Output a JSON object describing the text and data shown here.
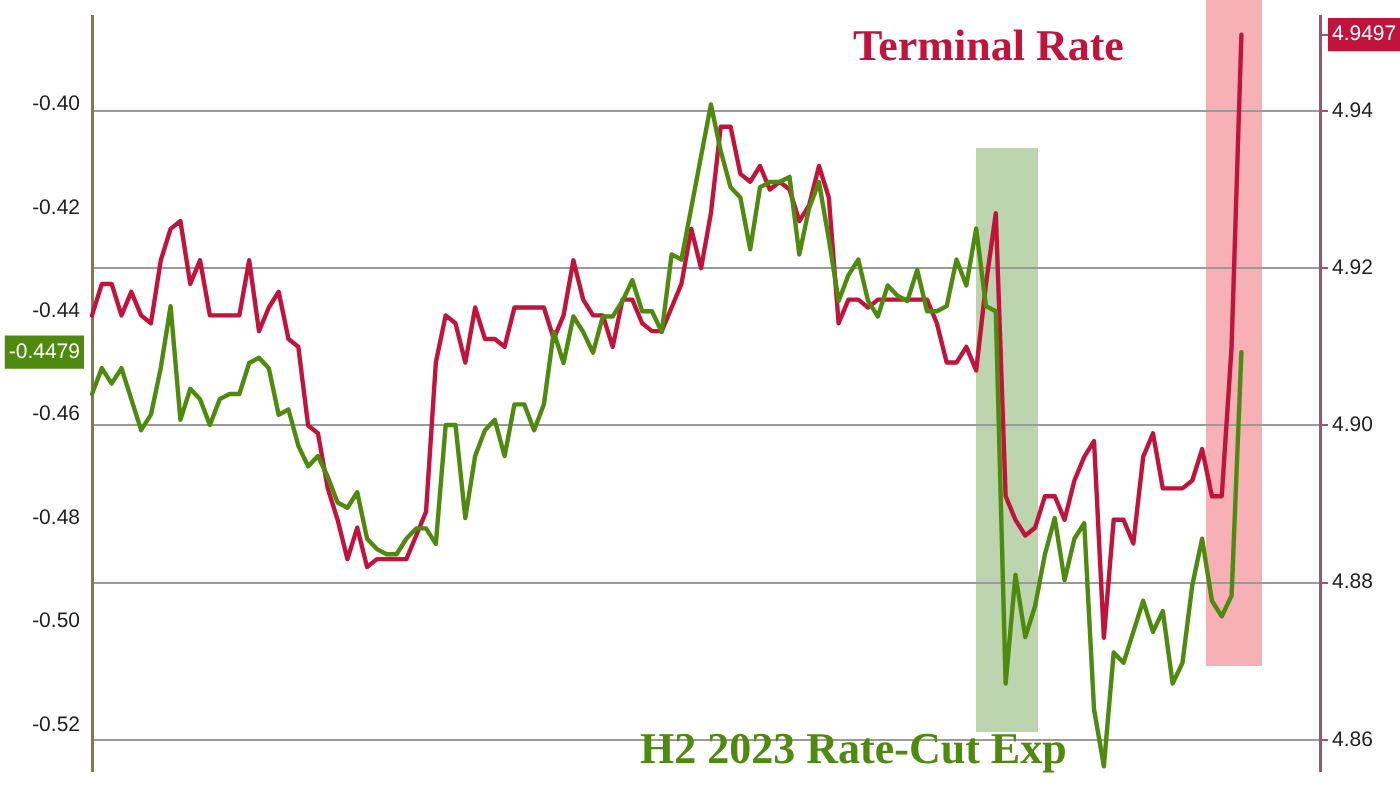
{
  "chart_data": {
    "type": "line",
    "categories": [
      null,
      null,
      null,
      null,
      null,
      null,
      null,
      null,
      null,
      null,
      null,
      null,
      null,
      null,
      null,
      null,
      null,
      null,
      null,
      null,
      null,
      null,
      null,
      null,
      null,
      null,
      null,
      null,
      null,
      null,
      null,
      null,
      null,
      null,
      null,
      null,
      null,
      null,
      null,
      null,
      null,
      null,
      null,
      null,
      null,
      null,
      null,
      null,
      null,
      null,
      null,
      null,
      null,
      null,
      null,
      null,
      null,
      null,
      null,
      null,
      null,
      null,
      null,
      null,
      null,
      null,
      null,
      null,
      null,
      null,
      null,
      null,
      null,
      null,
      null,
      null,
      null,
      null,
      null,
      null,
      null,
      null,
      null,
      null,
      null,
      null,
      null,
      null,
      null,
      null,
      null,
      null,
      null,
      null,
      null,
      null,
      null,
      null,
      null,
      null,
      null,
      null,
      null,
      null,
      null,
      null,
      null,
      null,
      null,
      null,
      null,
      null,
      null,
      null,
      null,
      null,
      null,
      null,
      null,
      null,
      null,
      null,
      null,
      null,
      null,
      null
    ],
    "ylim": [
      -0.529,
      -0.383
    ],
    "yticks": [
      {
        "value": -0.52,
        "label": "-0.52"
      },
      {
        "value": -0.5,
        "label": "-0.50"
      },
      {
        "value": -0.48,
        "label": "-0.48"
      },
      {
        "value": -0.46,
        "label": "-0.46"
      },
      {
        "value": -0.44,
        "label": "-0.44"
      },
      {
        "value": -0.42,
        "label": "-0.42"
      },
      {
        "value": -0.4,
        "label": "-0.40"
      },
      {
        "value": -0.4479,
        "label": "-0.4479"
      }
    ],
    "y2lim": [
      4.856,
      4.952
    ],
    "y2ticks": [
      {
        "value": 4.86,
        "label": "4.86"
      },
      {
        "value": 4.88,
        "label": "4.88"
      },
      {
        "value": 4.9,
        "label": "4.90"
      },
      {
        "value": 4.92,
        "label": "4.92"
      },
      {
        "value": 4.94,
        "label": "4.94"
      },
      {
        "value": 4.9497,
        "label": "4.9497"
      }
    ],
    "tick_labels": "y",
    "grid": "y",
    "legend": false,
    "line_style": "solid",
    "marker": "none",
    "series": [
      {
        "name": "H2 2023 Rate-Cut Exp",
        "color": "#4e8a0e",
        "values": [
          -0.456,
          -0.451,
          -0.454,
          -0.451,
          -0.457,
          -0.463,
          -0.46,
          -0.451,
          -0.439,
          -0.461,
          -0.455,
          -0.457,
          -0.462,
          -0.457,
          -0.456,
          -0.456,
          -0.45,
          -0.449,
          -0.451,
          -0.46,
          -0.459,
          -0.466,
          -0.47,
          -0.468,
          -0.472,
          -0.477,
          -0.478,
          -0.475,
          -0.484,
          -0.486,
          -0.487,
          -0.487,
          -0.484,
          -0.482,
          -0.482,
          -0.485,
          -0.462,
          -0.462,
          -0.48,
          -0.468,
          -0.463,
          -0.461,
          -0.468,
          -0.458,
          -0.458,
          -0.463,
          -0.458,
          -0.444,
          -0.45,
          -0.441,
          -0.444,
          -0.448,
          -0.441,
          -0.441,
          -0.438,
          -0.434,
          -0.44,
          -0.44,
          -0.444,
          -0.429,
          -0.43,
          -0.42,
          -0.41,
          -0.4,
          -0.409,
          -0.416,
          -0.418,
          -0.428,
          -0.416,
          -0.415,
          -0.415,
          -0.414,
          -0.429,
          -0.42,
          -0.415,
          -0.426,
          -0.438,
          -0.433,
          -0.43,
          -0.438,
          -0.441,
          -0.435,
          -0.437,
          -0.438,
          -0.432,
          -0.44,
          -0.44,
          -0.439,
          -0.43,
          -0.435,
          -0.424,
          -0.439,
          -0.44,
          -0.512,
          -0.491,
          -0.503,
          -0.497,
          -0.487,
          -0.48,
          -0.492,
          -0.484,
          -0.481,
          -0.517,
          -0.528,
          -0.506,
          -0.508,
          -0.502,
          -0.496,
          -0.502,
          -0.498,
          -0.512,
          -0.508,
          -0.493,
          -0.484,
          -0.496,
          -0.499,
          -0.495,
          -0.4479,
          null,
          null,
          null,
          null,
          null,
          null,
          null,
          null
        ]
      },
      {
        "name": "Terminal Rate",
        "axis": "y2",
        "color": "#c0143c",
        "values": [
          4.914,
          4.918,
          4.918,
          4.914,
          4.917,
          4.914,
          4.913,
          4.921,
          4.925,
          4.926,
          4.918,
          4.921,
          4.914,
          4.914,
          4.914,
          4.914,
          4.921,
          4.912,
          4.915,
          4.917,
          4.911,
          4.91,
          4.9,
          4.899,
          4.892,
          4.888,
          4.883,
          4.887,
          4.882,
          4.883,
          4.883,
          4.883,
          4.883,
          4.886,
          4.889,
          4.908,
          4.914,
          4.913,
          4.908,
          4.915,
          4.911,
          4.911,
          4.91,
          4.915,
          4.915,
          4.915,
          4.915,
          4.911,
          4.914,
          4.921,
          4.916,
          4.914,
          4.914,
          4.91,
          4.916,
          4.916,
          4.913,
          4.912,
          4.912,
          4.915,
          4.918,
          4.925,
          4.92,
          4.927,
          4.938,
          4.938,
          4.932,
          4.931,
          4.933,
          4.93,
          4.931,
          4.93,
          4.926,
          4.928,
          4.933,
          4.929,
          4.913,
          4.916,
          4.916,
          4.915,
          4.916,
          4.916,
          4.916,
          4.916,
          4.916,
          4.916,
          4.913,
          4.908,
          4.908,
          4.91,
          4.907,
          4.918,
          4.927,
          4.891,
          4.888,
          4.886,
          4.887,
          4.891,
          4.891,
          4.888,
          4.893,
          4.896,
          4.898,
          4.873,
          4.888,
          4.888,
          4.885,
          4.896,
          4.899,
          4.892,
          4.892,
          4.892,
          4.893,
          4.897,
          4.891,
          4.891,
          4.91,
          4.9497,
          null,
          null,
          null,
          null,
          null,
          null,
          null,
          null
        ]
      }
    ]
  }
}
